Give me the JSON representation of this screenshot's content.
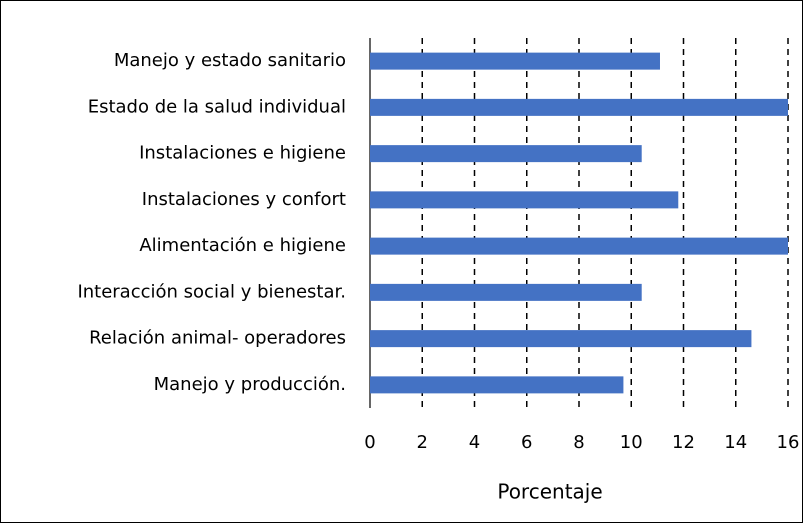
{
  "chart_data": {
    "type": "bar",
    "orientation": "horizontal",
    "categories": [
      "Manejo y estado sanitario",
      "Estado de la salud individual",
      "Instalaciones e higiene",
      "Instalaciones y confort",
      "Alimentación e higiene",
      "Interacción social y bienestar.",
      "Relación animal- operadores",
      "Manejo y producción."
    ],
    "values": [
      11.1,
      16,
      10.4,
      11.8,
      16,
      10.4,
      14.6,
      9.7
    ],
    "color": "#4472c4",
    "x_label": "Porcentaje",
    "xlim": [
      0,
      16
    ],
    "xticks": [
      0,
      2,
      4,
      6,
      8,
      10,
      12,
      14,
      16
    ],
    "grid": true
  }
}
